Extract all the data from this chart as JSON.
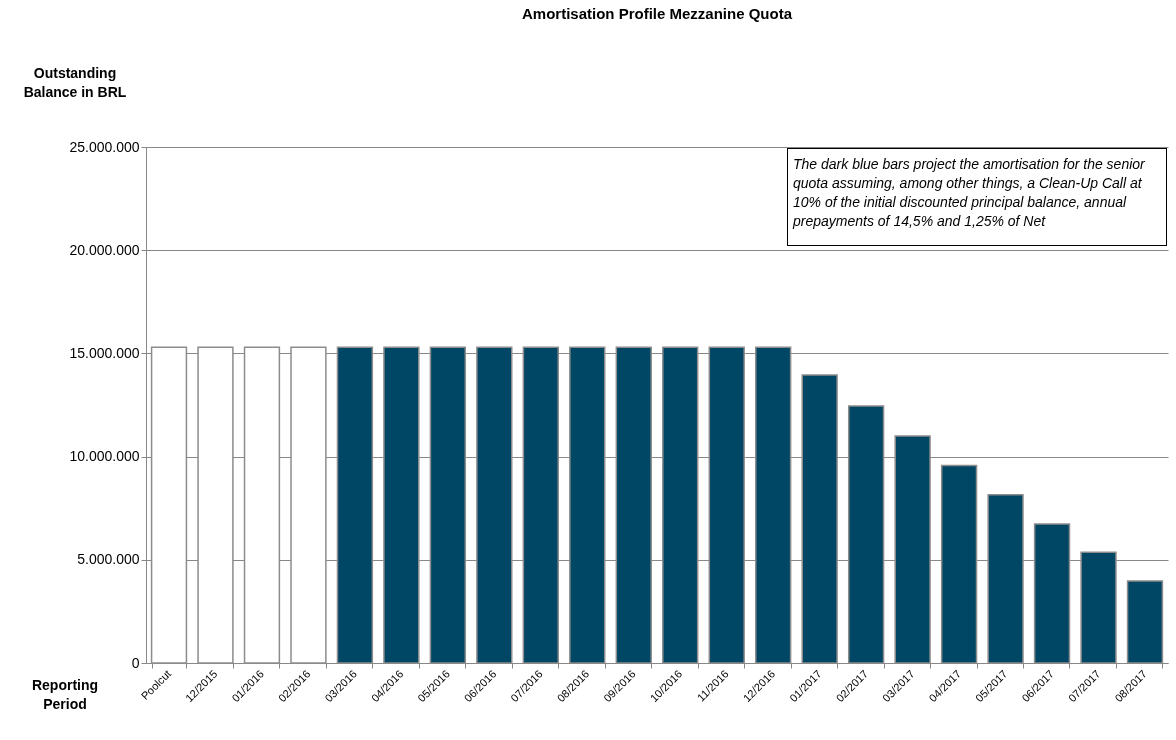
{
  "chart_data": {
    "type": "bar",
    "title": "Amortisation Profile Mezzanine Quota",
    "ylabel": "Outstanding Balance in BRL",
    "xlabel": "Reporting Period",
    "categories": [
      "Poolcut",
      "12/2015",
      "01/2016",
      "02/2016",
      "03/2016",
      "04/2016",
      "05/2016",
      "06/2016",
      "07/2016",
      "08/2016",
      "09/2016",
      "10/2016",
      "11/2016",
      "12/2016",
      "01/2017",
      "02/2017",
      "03/2017",
      "04/2017",
      "05/2017",
      "06/2017",
      "07/2017",
      "08/2017"
    ],
    "series": [
      {
        "color": "#ffffff",
        "values": [
          15300000,
          15300000,
          15300000,
          15300000,
          null,
          null,
          null,
          null,
          null,
          null,
          null,
          null,
          null,
          null,
          null,
          null,
          null,
          null,
          null,
          null,
          null,
          null
        ]
      },
      {
        "color": "#004766",
        "values": [
          null,
          null,
          null,
          null,
          15300000,
          15300000,
          15300000,
          15300000,
          15300000,
          15300000,
          15300000,
          15300000,
          15300000,
          15300000,
          13950000,
          12450000,
          11000000,
          9570000,
          8150000,
          6740000,
          5360000,
          3970000
        ]
      }
    ],
    "ylim": [
      0,
      25000000
    ],
    "yticks": [
      0,
      {
        "value": 5000000,
        "label": "5.000.000"
      },
      {
        "value": 10000000,
        "label": "10.000.000"
      },
      {
        "value": 15000000,
        "label": "15.000.000"
      },
      {
        "value": 20000000,
        "label": "20.000.000"
      },
      {
        "value": 25000000,
        "label": "25.000.000"
      }
    ],
    "grid": "y",
    "legend": false,
    "annotations": [
      "The dark blue bars project the amortisation for the senior quota assuming, among other things, a Clean-Up Call at 10% of the initial discounted principal balance, annual prepayments of 14,5% and 1,25% of Net"
    ]
  }
}
